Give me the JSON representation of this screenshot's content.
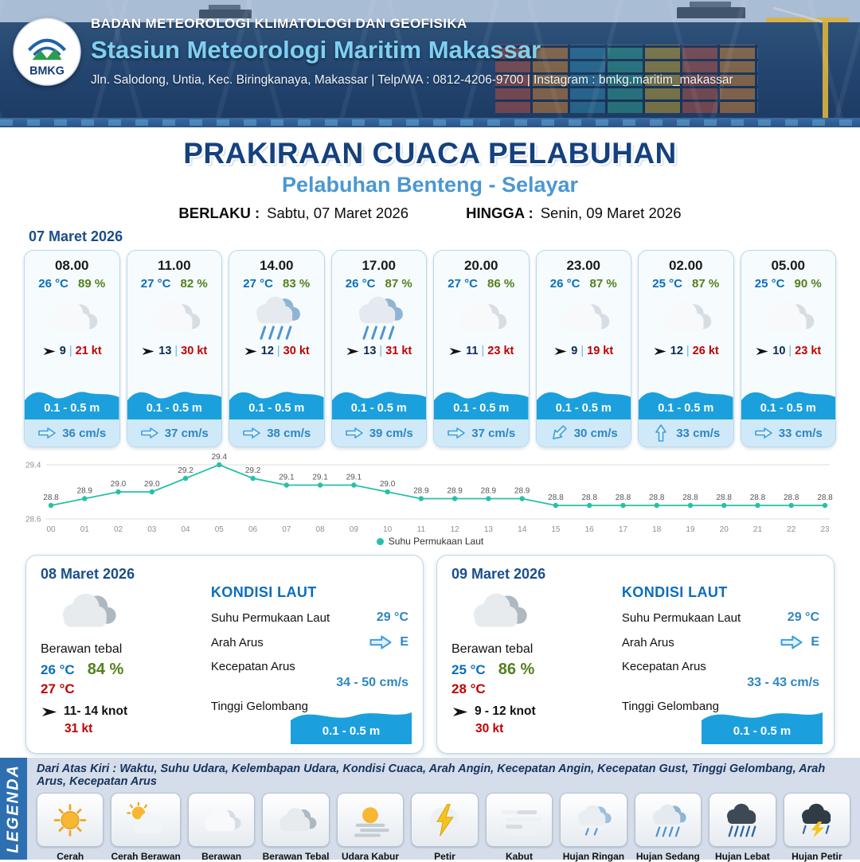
{
  "header": {
    "logo": "BMKG",
    "agency": "BADAN METEOROLOGI KLIMATOLOGI DAN GEOFISIKA",
    "station": "Stasiun Meteorologi Maritim Makassar",
    "contact": "Jln. Salodong, Untia, Kec. Biringkanaya, Makassar | Telp/WA : 0812-4206-9700 | Instagram : bmkg.maritim_makassar"
  },
  "title": {
    "main": "PRAKIRAAN CUACA PELABUHAN",
    "subtitle": "Pelabuhan Benteng - Selayar",
    "berlaku_label": "BERLAKU :",
    "berlaku_value": "Sabtu, 07 Maret 2026",
    "hingga_label": "HINGGA :",
    "hingga_value": "Senin, 09 Maret 2026"
  },
  "hourly_date": "07 Maret 2026",
  "ui": {
    "separator": "|"
  },
  "hourly": [
    {
      "time": "08.00",
      "temp": "26 °C",
      "rh": "89 %",
      "icon": "cloud",
      "wind": "9",
      "gust": "21 kt",
      "wave": "0.1 - 0.5 m",
      "current": "36 cm/s",
      "current_rot": 0
    },
    {
      "time": "11.00",
      "temp": "27 °C",
      "rh": "82 %",
      "icon": "cloud",
      "wind": "13",
      "gust": "30 kt",
      "wave": "0.1 - 0.5 m",
      "current": "37 cm/s",
      "current_rot": 0
    },
    {
      "time": "14.00",
      "temp": "27 °C",
      "rh": "83 %",
      "icon": "rain-moderate",
      "wind": "12",
      "gust": "30 kt",
      "wave": "0.1 - 0.5 m",
      "current": "38 cm/s",
      "current_rot": 0
    },
    {
      "time": "17.00",
      "temp": "26 °C",
      "rh": "87 %",
      "icon": "rain-moderate",
      "wind": "13",
      "gust": "31 kt",
      "wave": "0.1 - 0.5 m",
      "current": "39 cm/s",
      "current_rot": 0
    },
    {
      "time": "20.00",
      "temp": "27 °C",
      "rh": "86 %",
      "icon": "cloud",
      "wind": "11",
      "gust": "23 kt",
      "wave": "0.1 - 0.5 m",
      "current": "37 cm/s",
      "current_rot": 0
    },
    {
      "time": "23.00",
      "temp": "26 °C",
      "rh": "87 %",
      "icon": "cloud",
      "wind": "9",
      "gust": "19 kt",
      "wave": "0.1 - 0.5 m",
      "current": "30 cm/s",
      "current_rot": 135
    },
    {
      "time": "02.00",
      "temp": "25 °C",
      "rh": "87 %",
      "icon": "cloud",
      "wind": "12",
      "gust": "26 kt",
      "wave": "0.1 - 0.5 m",
      "current": "33 cm/s",
      "current_rot": -90
    },
    {
      "time": "05.00",
      "temp": "25 °C",
      "rh": "90 %",
      "icon": "cloud",
      "wind": "10",
      "gust": "23 kt",
      "wave": "0.1 - 0.5 m",
      "current": "33 cm/s",
      "current_rot": 0
    }
  ],
  "chart_data": {
    "type": "line",
    "series_name": "Suhu Permukaan Laut",
    "x": [
      "00",
      "01",
      "02",
      "03",
      "04",
      "05",
      "06",
      "07",
      "08",
      "09",
      "10",
      "11",
      "12",
      "13",
      "14",
      "15",
      "16",
      "17",
      "18",
      "19",
      "20",
      "21",
      "22",
      "23"
    ],
    "values": [
      28.8,
      28.9,
      29.0,
      29.0,
      29.2,
      29.4,
      29.2,
      29.1,
      29.1,
      29.1,
      29.0,
      28.9,
      28.9,
      28.9,
      28.9,
      28.8,
      28.8,
      28.8,
      28.8,
      28.8,
      28.8,
      28.8,
      28.8,
      28.8
    ],
    "ylim": [
      28.6,
      29.4
    ],
    "xlabel": "",
    "ylabel": "",
    "line_color": "#27c0a8",
    "grid": true,
    "legend_position": "bottom"
  },
  "daily": [
    {
      "date": "08 Maret 2026",
      "icon": "cloud-thick",
      "condition": "Berawan tebal",
      "temp_min": "26 °C",
      "rh": "84 %",
      "temp_max": "27 °C",
      "wind": "11- 14 knot",
      "gust": "31 kt",
      "sea": {
        "title": "KONDISI LAUT",
        "sst_label": "Suhu Permukaan Laut",
        "sst": "29 °C",
        "current_dir_label": "Arah Arus",
        "current_dir": "E",
        "current_speed_label": "Kecepatan Arus",
        "current_speed": "34 - 50 cm/s",
        "wave_label": "Tinggi Gelombang",
        "wave": "0.1 - 0.5 m"
      }
    },
    {
      "date": "09 Maret 2026",
      "icon": "cloud-thick",
      "condition": "Berawan tebal",
      "temp_min": "25 °C",
      "rh": "86 %",
      "temp_max": "28 °C",
      "wind": "9 - 12 knot",
      "gust": "30 kt",
      "sea": {
        "title": "KONDISI LAUT",
        "sst_label": "Suhu Permukaan Laut",
        "sst": "29 °C",
        "current_dir_label": "Arah Arus",
        "current_dir": "E",
        "current_speed_label": "Kecepatan Arus",
        "current_speed": "33 - 43 cm/s",
        "wave_label": "Tinggi Gelombang",
        "wave": "0.1 - 0.5 m"
      }
    }
  ],
  "legend": {
    "title": "LEGENDA",
    "caption": "Dari Atas Kiri : Waktu, Suhu Udara, Kelembapan Udara, Kondisi Cuaca, Arah Angin, Kecepatan Angin, Kecepatan Gust, Tinggi Gelombang, Arah Arus, Kecepatan Arus",
    "items": [
      {
        "label": "Cerah",
        "icon": "sun"
      },
      {
        "label": "Cerah Berawan",
        "icon": "sun-cloud"
      },
      {
        "label": "Berawan",
        "icon": "cloud"
      },
      {
        "label": "Berawan Tebal",
        "icon": "cloud-thick"
      },
      {
        "label": "Udara Kabur",
        "icon": "haze"
      },
      {
        "label": "Petir",
        "icon": "lightning"
      },
      {
        "label": "Kabut",
        "icon": "fog"
      },
      {
        "label": "Hujan Ringan",
        "icon": "rain-light"
      },
      {
        "label": "Hujan Sedang",
        "icon": "rain-moderate"
      },
      {
        "label": "Hujan Lebat",
        "icon": "rain-heavy"
      },
      {
        "label": "Hujan Petir",
        "icon": "storm"
      }
    ]
  },
  "colors": {
    "header_navy": "#23456f",
    "title_blue": "#14417f",
    "subtitle_blue": "#4b97d2",
    "temp_blue": "#0a6ebd",
    "humidity_green": "#53801c",
    "gust_red": "#c00000",
    "wave_blue": "#1ba0dd",
    "current_blue": "#2e86c1",
    "chart_teal": "#27c0a8",
    "legend_bar_blue": "#2d6fb0"
  }
}
